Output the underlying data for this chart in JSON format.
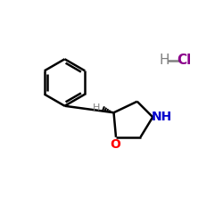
{
  "background_color": "#ffffff",
  "bond_color": "#000000",
  "O_color": "#ff0000",
  "N_color": "#0000cd",
  "HCl_H_color": "#808080",
  "HCl_Cl_color": "#8b008b",
  "H_label_color": "#808080",
  "figsize": [
    2.5,
    2.5
  ],
  "dpi": 100,
  "xlim": [
    0,
    10
  ],
  "ylim": [
    0,
    10
  ]
}
